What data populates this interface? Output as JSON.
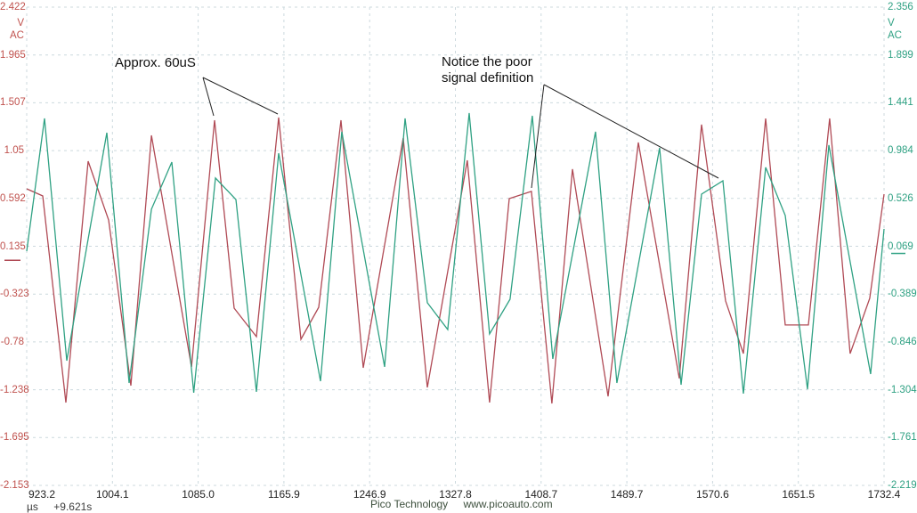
{
  "chart_data": {
    "type": "line",
    "title": "",
    "x_unit_label": "µs",
    "x_offset_label": "+9.621s",
    "x_range": [
      923.2,
      1732.4
    ],
    "x_ticks": [
      "923.2",
      "1004.1",
      "1085.0",
      "1165.9",
      "1246.9",
      "1327.8",
      "1408.7",
      "1489.7",
      "1570.6",
      "1651.5",
      "1732.4"
    ],
    "grid_color": "#ccd9de",
    "left_axis": {
      "unit": "V",
      "coupling": "AC",
      "color": "#c0524e",
      "ylim": [
        2.422,
        -2.153
      ],
      "ticks": [
        "2.422",
        "1.965",
        "1.507",
        "1.05",
        "0.592",
        "0.135",
        "-0.323",
        "-0.78",
        "-1.238",
        "-1.695",
        "-2.153"
      ]
    },
    "right_axis": {
      "unit": "V",
      "coupling": "AC",
      "color": "#2fa183",
      "ylim": [
        2.356,
        -2.219
      ],
      "ticks": [
        "2.356",
        "1.899",
        "1.441",
        "0.984",
        "0.526",
        "0.069",
        "-0.389",
        "-0.846",
        "-1.304",
        "-1.761",
        "-2.219"
      ]
    },
    "series": [
      {
        "name": "channel-a-red",
        "color": "#b04a55",
        "axis": "left",
        "points": [
          [
            923.2,
            0.684
          ],
          [
            938.3,
            0.616
          ],
          [
            960.2,
            -1.361
          ],
          [
            981.2,
            0.948
          ],
          [
            1000.5,
            0.386
          ],
          [
            1021.5,
            -1.199
          ],
          [
            1040.9,
            1.195
          ],
          [
            1078.7,
            -1.02
          ],
          [
            1100.5,
            1.34
          ],
          [
            1119.0,
            -0.458
          ],
          [
            1140.0,
            -0.73
          ],
          [
            1161.0,
            1.366
          ],
          [
            1182.0,
            -0.756
          ],
          [
            1198.8,
            -0.449
          ],
          [
            1219.8,
            1.34
          ],
          [
            1240.8,
            -1.028
          ],
          [
            1278.6,
            1.17
          ],
          [
            1301.3,
            -1.216
          ],
          [
            1339.1,
            0.957
          ],
          [
            1360.1,
            -1.361
          ],
          [
            1378.6,
            0.59
          ],
          [
            1399.6,
            0.659
          ],
          [
            1418.9,
            -1.369
          ],
          [
            1438.3,
            0.872
          ],
          [
            1471.9,
            -1.301
          ],
          [
            1500.5,
            1.127
          ],
          [
            1539.1,
            -1.13
          ],
          [
            1560.1,
            1.298
          ],
          [
            1582.8,
            -0.389
          ],
          [
            1599.6,
            -0.892
          ],
          [
            1620.6,
            1.357
          ],
          [
            1639.1,
            -0.619
          ],
          [
            1661.0,
            -0.619
          ],
          [
            1681.1,
            1.357
          ],
          [
            1700.4,
            -0.892
          ],
          [
            1718.9,
            -0.364
          ],
          [
            1732.4,
            0.633
          ]
        ]
      },
      {
        "name": "channel-b-green",
        "color": "#2fa183",
        "axis": "right",
        "points": [
          [
            923.2,
            0.022
          ],
          [
            940.0,
            1.292
          ],
          [
            961.0,
            -1.026
          ],
          [
            998.8,
            1.155
          ],
          [
            1019.8,
            -1.239
          ],
          [
            1040.9,
            0.423
          ],
          [
            1060.2,
            0.874
          ],
          [
            1080.8,
            -1.332
          ],
          [
            1101.3,
            0.721
          ],
          [
            1120.7,
            0.516
          ],
          [
            1140.0,
            -1.324
          ],
          [
            1161.0,
            0.959
          ],
          [
            1200.5,
            -1.222
          ],
          [
            1220.6,
            1.164
          ],
          [
            1261.0,
            -1.085
          ],
          [
            1280.3,
            1.292
          ],
          [
            1301.3,
            -0.472
          ],
          [
            1320.6,
            -0.728
          ],
          [
            1340.8,
            1.343
          ],
          [
            1360.1,
            -0.77
          ],
          [
            1379.4,
            -0.438
          ],
          [
            1400.4,
            1.317
          ],
          [
            1419.7,
            -1.009
          ],
          [
            1460.1,
            1.164
          ],
          [
            1480.2,
            -1.239
          ],
          [
            1520.6,
            1.01
          ],
          [
            1540.8,
            -1.256
          ],
          [
            1560.1,
            0.567
          ],
          [
            1580.3,
            0.695
          ],
          [
            1599.6,
            -1.341
          ],
          [
            1620.6,
            0.823
          ],
          [
            1639.1,
            0.363
          ],
          [
            1660.1,
            -1.298
          ],
          [
            1680.3,
            1.036
          ],
          [
            1719.7,
            -1.154
          ],
          [
            1732.4,
            0.235
          ]
        ]
      }
    ],
    "annotations": [
      {
        "text": "Approx. 60uS",
        "color": "#111111",
        "box": {
          "left": 129,
          "top": 62
        },
        "lines": [
          [
            228,
            87,
            240,
            130
          ],
          [
            228,
            87,
            312,
            128
          ]
        ]
      },
      {
        "text": "Notice the poor\nsignal definition",
        "color": "#111111",
        "box": {
          "left": 496,
          "top": 61
        },
        "lines": [
          [
            611,
            95,
            597,
            211
          ],
          [
            611,
            95,
            807,
            200
          ]
        ]
      }
    ],
    "legend_position": "none",
    "grid": true
  },
  "footer": {
    "brand": "Pico Technology",
    "url": "www.picoauto.com"
  }
}
